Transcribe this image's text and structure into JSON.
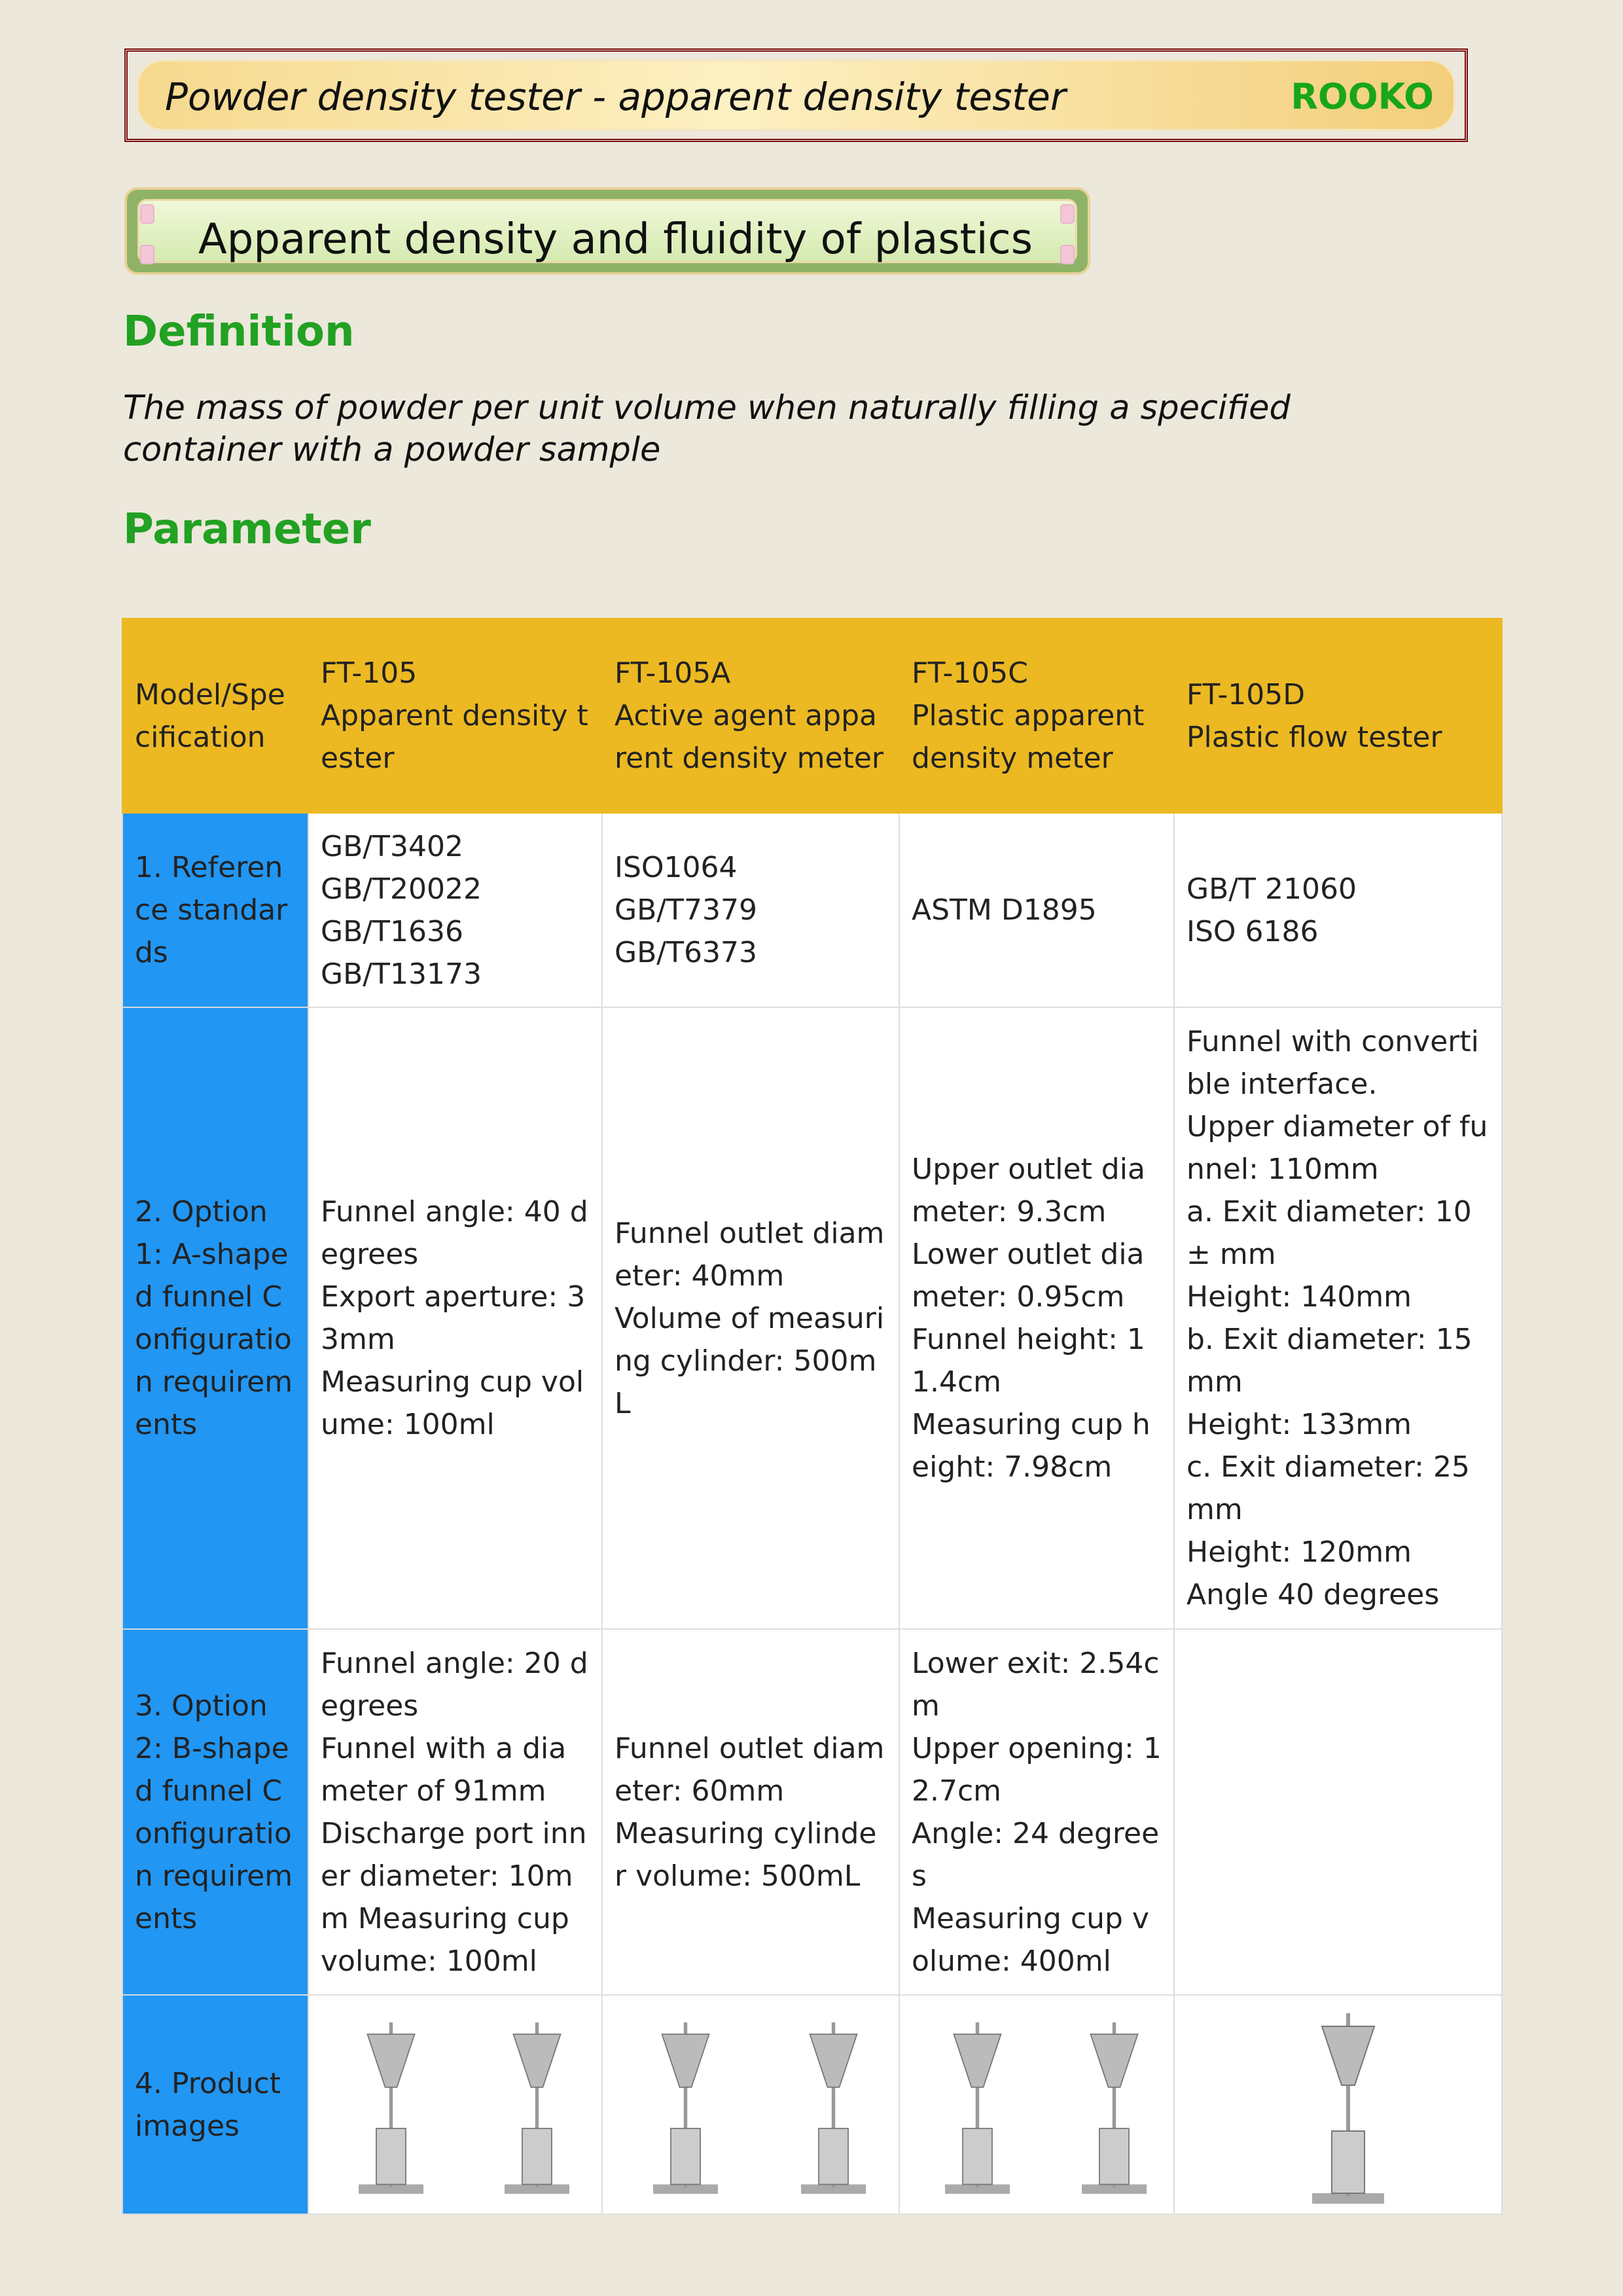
{
  "header": {
    "title": "Powder density tester - apparent density tester",
    "brand": "ROOKO"
  },
  "section_title": "Apparent density and fluidity of plastics",
  "definition": {
    "heading": "Definition",
    "text": "The mass of powder per unit volume when naturally filling a specified container with a powder sample"
  },
  "parameter": {
    "heading": "Parameter"
  },
  "table": {
    "header": [
      "Model/Specification",
      "FT-105\nApparent density tester",
      "FT-105A\nActive agent apparent density meter",
      "FT-105C\nPlastic apparent density meter",
      "FT-105D\nPlastic flow tester"
    ],
    "rows": [
      [
        "1. Reference standards",
        "GB/T3402\nGB/T20022\nGB/T1636\nGB/T13173",
        "ISO1064\nGB/T7379\nGB/T6373",
        "ASTM D1895",
        "GB/T 21060\nISO 6186"
      ],
      [
        "2. Option 1: A-shaped funnel Configuration requirements",
        "Funnel angle: 40 degrees\nExport aperture: 33mm\nMeasuring cup volume: 100ml",
        "Funnel outlet diameter: 40mm\nVolume of measuring cylinder: 500mL",
        "Upper outlet diameter: 9.3cm\nLower outlet diameter: 0.95cm\nFunnel height: 11.4cm\nMeasuring cup height: 7.98cm",
        "Funnel with convertible interface.\nUpper diameter of funnel: 110mm\na. Exit diameter: 10 ± mm\nHeight: 140mm\nb. Exit diameter: 15mm\nHeight: 133mm\nc. Exit diameter: 25mm\nHeight: 120mm\nAngle 40 degrees"
      ],
      [
        "3. Option 2: B-shaped funnel Configuration requirements",
        "Funnel angle: 20 degrees\nFunnel with a diameter of 91mm\nDischarge port inner diameter: 10mm Measuring cup volume: 100ml",
        "Funnel outlet diameter: 60mm\nMeasuring cylinder volume: 500mL",
        "Lower exit: 2.54cm\nUpper opening: 12.7cm\nAngle: 24 degrees\nMeasuring cup volume: 400ml",
        ""
      ],
      [
        "4. Product images",
        "",
        "",
        "",
        ""
      ]
    ]
  },
  "colors": {
    "header_bg": "#ecb923",
    "first_col_bg": "#2196f3",
    "heading_green": "#22a122",
    "brand_green": "#19a619"
  }
}
